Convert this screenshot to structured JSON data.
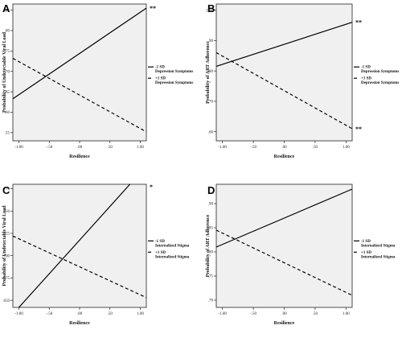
{
  "chart_data": [
    {
      "type": "line",
      "panel_label": "A",
      "xlabel": "Resilience",
      "ylabel": "Probability of Undetectable Viral Load",
      "x_ticks": [
        "-1.00",
        "-.50",
        ".00",
        ".50",
        "1.00"
      ],
      "y_ticks": [
        ".55",
        ".60",
        ".65",
        ".70",
        ".75",
        ".80",
        ".85"
      ],
      "xlim": [
        -1.1,
        1.1
      ],
      "ylim": [
        0.53,
        0.865
      ],
      "series": [
        {
          "name": "-1 SD Depression Symptoms",
          "style": "solid",
          "x": [
            -1.1,
            1.1
          ],
          "y": [
            0.633,
            0.855
          ],
          "significance": "**"
        },
        {
          "name": "+1 SD Depression Symptoms",
          "style": "dashed",
          "x": [
            -1.1,
            1.1
          ],
          "y": [
            0.732,
            0.552
          ],
          "significance": ""
        }
      ]
    },
    {
      "type": "line",
      "panel_label": "B",
      "xlabel": "Resilience",
      "ylabel": "Probability of ART Adherence",
      "x_ticks": [
        "-1.00",
        "-.50",
        ".00",
        ".50",
        "1.00"
      ],
      "y_ticks": [
        ".60",
        ".70",
        ".80",
        ".90",
        "1.00"
      ],
      "xlim": [
        -1.1,
        1.1
      ],
      "ylim": [
        0.57,
        1.02
      ],
      "series": [
        {
          "name": "-1 SD Depression Symptoms",
          "style": "solid",
          "x": [
            -1.1,
            1.1
          ],
          "y": [
            0.815,
            0.96
          ],
          "significance": "**"
        },
        {
          "name": "+1 SD Depression Symptoms",
          "style": "dashed",
          "x": [
            -1.1,
            1.1
          ],
          "y": [
            0.86,
            0.61
          ],
          "significance": "**"
        }
      ]
    },
    {
      "type": "line",
      "panel_label": "C",
      "xlabel": "Resilience",
      "ylabel": "Probability of Undetectable Viral Load",
      "x_ticks": [
        "-1.00",
        "-.50",
        ".00",
        ".50",
        "1.00"
      ],
      "y_ticks": [
        ".650",
        ".675",
        ".700",
        ".725",
        ".750",
        ".775"
      ],
      "xlim": [
        -1.1,
        1.1
      ],
      "ylim": [
        0.642,
        0.78
      ],
      "series": [
        {
          "name": "-1 SD Internalized Stigma",
          "style": "solid",
          "x": [
            -1.0,
            0.83
          ],
          "y": [
            0.642,
            0.78
          ],
          "significance": "*"
        },
        {
          "name": "+1 SD Internalized Stigma",
          "style": "dashed",
          "x": [
            -1.1,
            1.1
          ],
          "y": [
            0.722,
            0.653
          ],
          "significance": ""
        }
      ]
    },
    {
      "type": "line",
      "panel_label": "D",
      "xlabel": "Resilience",
      "ylabel": "Probability of ART Adherence",
      "x_ticks": [
        "-1.00",
        "-.50",
        ".00",
        ".50",
        "1.00"
      ],
      "y_ticks": [
        ".70",
        ".75",
        ".80",
        ".85",
        ".90"
      ],
      "xlim": [
        -1.1,
        1.1
      ],
      "ylim": [
        0.685,
        0.94
      ],
      "series": [
        {
          "name": "-1 SD Internalized Stigma",
          "style": "solid",
          "x": [
            -1.1,
            1.1
          ],
          "y": [
            0.81,
            0.93
          ],
          "significance": ""
        },
        {
          "name": "+1 SD Internalized Stigma",
          "style": "dashed",
          "x": [
            -1.1,
            1.1
          ],
          "y": [
            0.845,
            0.71
          ],
          "significance": ""
        }
      ]
    }
  ]
}
